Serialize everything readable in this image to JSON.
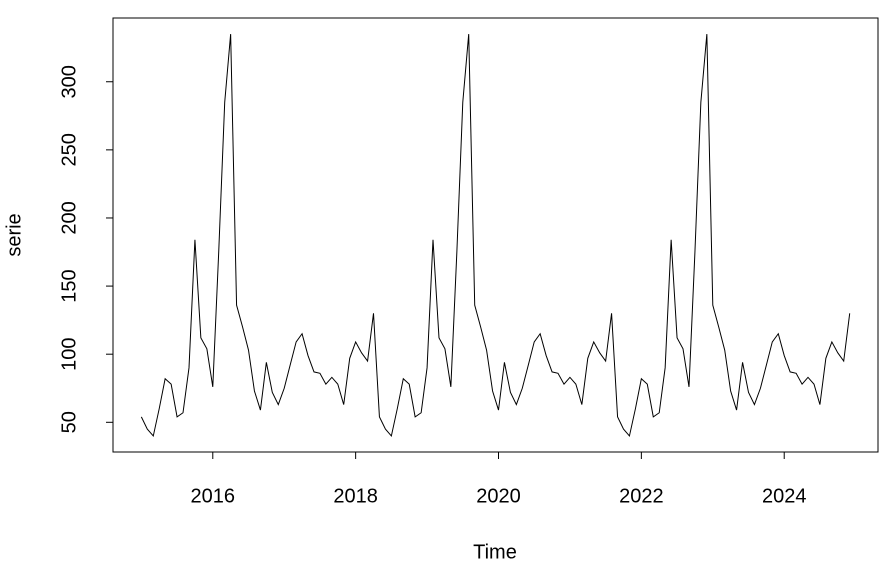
{
  "chart_data": {
    "type": "line",
    "x_label": "Time",
    "y_label": "serie",
    "x": [
      2015,
      2015.083,
      2015.167,
      2015.25,
      2015.333,
      2015.417,
      2015.5,
      2015.583,
      2015.667,
      2015.75,
      2015.833,
      2015.917,
      2016,
      2016.083,
      2016.167,
      2016.25,
      2016.333,
      2016.417,
      2016.5,
      2016.583,
      2016.667,
      2016.75,
      2016.833,
      2016.917,
      2017,
      2017.083,
      2017.167,
      2017.25,
      2017.333,
      2017.417,
      2017.5,
      2017.583,
      2017.667,
      2017.75,
      2017.833,
      2017.917,
      2018,
      2018.083,
      2018.167,
      2018.25,
      2018.333,
      2018.417,
      2018.5,
      2018.583,
      2018.667,
      2018.75,
      2018.833,
      2018.917,
      2019,
      2019.083,
      2019.167,
      2019.25,
      2019.333,
      2019.417,
      2019.5,
      2019.583,
      2019.667,
      2019.75,
      2019.833,
      2019.917,
      2020,
      2020.083,
      2020.167,
      2020.25,
      2020.333,
      2020.417,
      2020.5,
      2020.583,
      2020.667,
      2020.75,
      2020.833,
      2020.917,
      2021,
      2021.083,
      2021.167,
      2021.25,
      2021.333,
      2021.417,
      2021.5,
      2021.583,
      2021.667,
      2021.75,
      2021.833,
      2021.917,
      2022,
      2022.083,
      2022.167,
      2022.25,
      2022.333,
      2022.417,
      2022.5,
      2022.583,
      2022.667,
      2022.75,
      2022.833,
      2022.917,
      2023,
      2023.083,
      2023.167,
      2023.25,
      2023.333,
      2023.417,
      2023.5,
      2023.583,
      2023.667,
      2023.75,
      2023.833,
      2023.917,
      2024,
      2024.083,
      2024.167,
      2024.25,
      2024.333,
      2024.417,
      2024.5,
      2024.583,
      2024.667,
      2024.75,
      2024.833,
      2024.917
    ],
    "values": [
      54,
      45,
      40,
      60,
      82,
      78,
      54,
      57,
      90,
      184,
      112,
      104,
      76,
      175,
      285,
      335,
      136,
      120,
      103,
      73,
      59,
      94,
      72,
      63,
      75,
      92,
      109,
      115,
      99,
      87,
      86,
      78,
      83,
      78,
      63,
      97,
      109,
      101,
      95,
      130,
      54,
      45,
      40,
      60,
      82,
      78,
      54,
      57,
      90,
      184,
      112,
      104,
      76,
      175,
      285,
      335,
      136,
      120,
      103,
      73,
      59,
      94,
      72,
      63,
      75,
      92,
      109,
      115,
      99,
      87,
      86,
      78,
      83,
      78,
      63,
      97,
      109,
      101,
      95,
      130,
      54,
      45,
      40,
      60,
      82,
      78,
      54,
      57,
      90,
      184,
      112,
      104,
      76,
      175,
      285,
      335,
      136,
      120,
      103,
      73,
      59,
      94,
      72,
      63,
      75,
      92,
      109,
      115,
      99,
      87,
      86,
      78,
      83,
      78,
      63,
      97,
      109,
      101,
      95,
      130
    ],
    "color": "#000000",
    "xlim": [
      2014.603,
      2025.313
    ],
    "xticks": [
      2016,
      2018,
      2020,
      2022,
      2024
    ],
    "ylim": [
      28.2,
      346.8
    ],
    "yticks": [
      50,
      100,
      150,
      200,
      250,
      300
    ]
  }
}
